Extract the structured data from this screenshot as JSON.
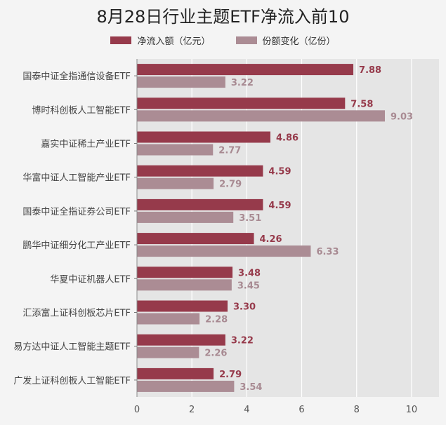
{
  "chart_data": {
    "type": "bar",
    "orientation": "horizontal",
    "title": "8月28日行业主题ETF净流入前10",
    "categories": [
      "国泰中证全指通信设备ETF",
      "博时科创板人工智能ETF",
      "嘉实中证稀土产业ETF",
      "华富中证人工智能产业ETF",
      "国泰中证全指证券公司ETF",
      "鹏华中证细分化工产业ETF",
      "华夏中证机器人ETF",
      "汇添富上证科创板芯片ETF",
      "易方达中证人工智能主题ETF",
      "广发上证科创板人工智能ETF"
    ],
    "series": [
      {
        "name": "净流入额（亿元）",
        "color": "#963a4b",
        "label_color": "#963a4b",
        "values": [
          7.88,
          7.58,
          4.86,
          4.59,
          4.59,
          4.26,
          3.48,
          3.3,
          3.22,
          2.79
        ]
      },
      {
        "name": "份额变化（亿份）",
        "color": "#ab8c94",
        "label_color": "#a88a92",
        "values": [
          3.22,
          9.03,
          2.77,
          2.79,
          3.51,
          6.33,
          3.45,
          2.28,
          2.26,
          3.54
        ]
      }
    ],
    "xlim": [
      0,
      11
    ],
    "xticks": [
      "0",
      "2",
      "4",
      "6",
      "8",
      "10"
    ],
    "grid": true,
    "legend_position": "top"
  }
}
